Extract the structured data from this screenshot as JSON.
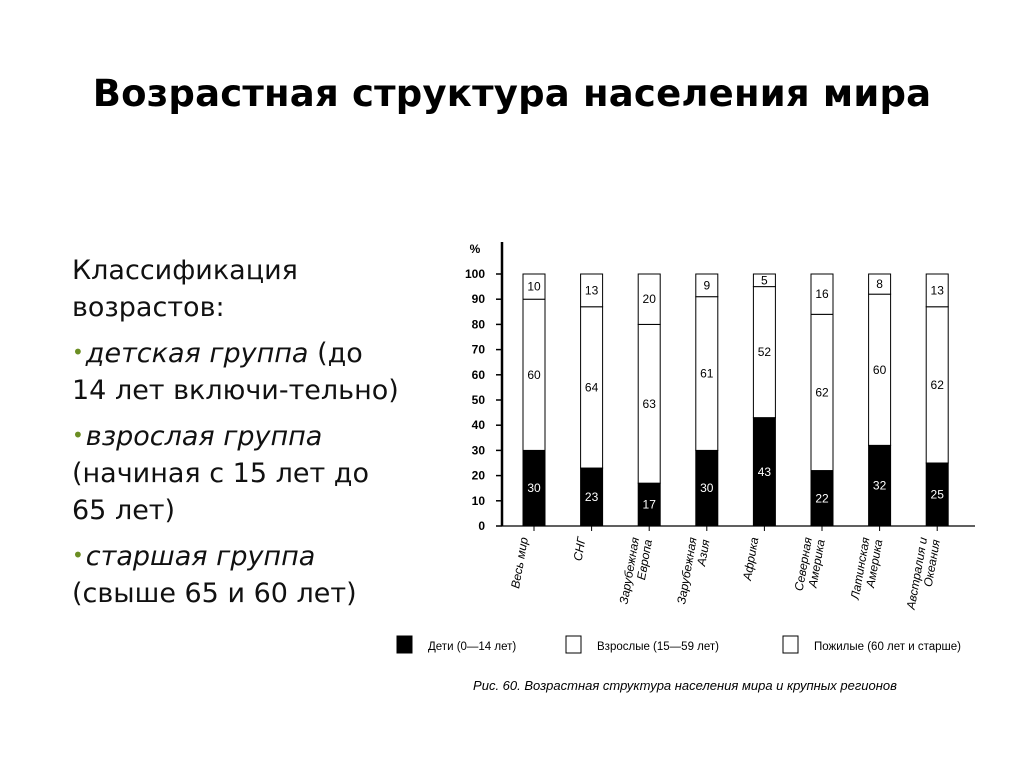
{
  "slide": {
    "title": "Возрастная структура населения мира",
    "classification_heading": "Классификация возрастов:",
    "groups": [
      {
        "name": "детская группа",
        "description": "(до 14 лет включи-тельно)"
      },
      {
        "name": "взрослая группа",
        "description": "(начиная с 15 лет до 65 лет)"
      },
      {
        "name": "старшая группа",
        "description": "(свыше 65 и 60 лет)"
      }
    ]
  },
  "chart_data": {
    "type": "bar",
    "stacked": true,
    "ylabel": "%",
    "ylim": [
      0,
      100
    ],
    "yticks": [
      0,
      10,
      20,
      30,
      40,
      50,
      60,
      70,
      80,
      90,
      100
    ],
    "categories": [
      [
        "Весь мир"
      ],
      [
        "СНГ"
      ],
      [
        "Зарубежная",
        "Европа"
      ],
      [
        "Зарубежная",
        "Азия"
      ],
      [
        "Африка"
      ],
      [
        "Северная",
        "Америка"
      ],
      [
        "Латинская",
        "Америка"
      ],
      [
        "Австралия и",
        "Океания"
      ]
    ],
    "series": [
      {
        "name": "Дети (0—14 лет)",
        "values": [
          30,
          23,
          17,
          30,
          43,
          22,
          32,
          25
        ],
        "color": "#000000"
      },
      {
        "name": "Взрослые (15—59 лет)",
        "values": [
          60,
          64,
          63,
          61,
          52,
          62,
          60,
          62
        ],
        "color": "#ffffff"
      },
      {
        "name": "Пожилые (60 лет и старше)",
        "values": [
          10,
          13,
          20,
          9,
          5,
          16,
          8,
          13
        ],
        "color": "#ffffff"
      }
    ],
    "caption": "Рис. 60. Возрастная структура населения мира и крупных регионов",
    "legend_position": "bottom"
  }
}
